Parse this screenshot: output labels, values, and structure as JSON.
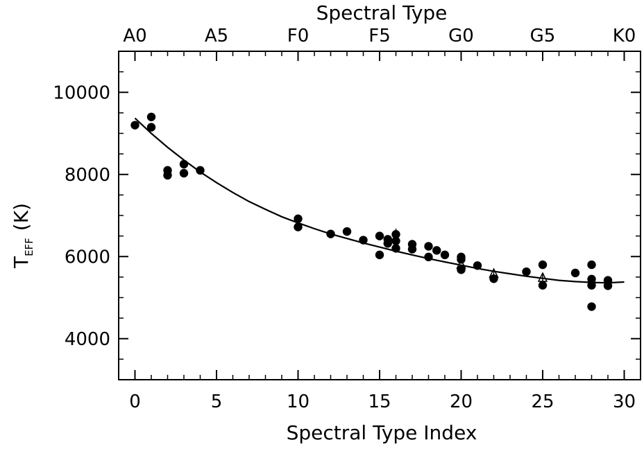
{
  "chart_data": {
    "type": "scatter",
    "title": "",
    "xlabel": "Spectral Type Index",
    "ylabel": "T",
    "ylabel_sub": "EFF",
    "ylabel_unit": "(K)",
    "top_xlabel": "Spectral Type",
    "xlim": [
      -1,
      31
    ],
    "ylim": [
      3000,
      11000
    ],
    "xticks": [
      0,
      5,
      10,
      15,
      20,
      25,
      30
    ],
    "yticks": [
      4000,
      6000,
      8000,
      10000
    ],
    "top_ticks": [
      {
        "x": 0,
        "label": "A0"
      },
      {
        "x": 5,
        "label": "A5"
      },
      {
        "x": 10,
        "label": "F0"
      },
      {
        "x": 15,
        "label": "F5"
      },
      {
        "x": 20,
        "label": "G0"
      },
      {
        "x": 25,
        "label": "G5"
      },
      {
        "x": 30,
        "label": "K0"
      }
    ],
    "grid": false,
    "series": [
      {
        "marker": "filled-circle",
        "points": [
          [
            0,
            9200
          ],
          [
            1,
            9400
          ],
          [
            1,
            9150
          ],
          [
            2,
            8100
          ],
          [
            2,
            7980
          ],
          [
            3,
            8250
          ],
          [
            3,
            8030
          ],
          [
            4,
            8100
          ],
          [
            10,
            6920
          ],
          [
            10,
            6720
          ],
          [
            12,
            6550
          ],
          [
            13,
            6610
          ],
          [
            14,
            6400
          ],
          [
            15,
            6500
          ],
          [
            15,
            6040
          ],
          [
            15.5,
            6420
          ],
          [
            15.5,
            6320
          ],
          [
            16,
            6540
          ],
          [
            16,
            6380
          ],
          [
            16,
            6200
          ],
          [
            17,
            6300
          ],
          [
            17,
            6180
          ],
          [
            18,
            6250
          ],
          [
            18,
            5990
          ],
          [
            18.5,
            6150
          ],
          [
            19,
            6040
          ],
          [
            20,
            5990
          ],
          [
            20,
            5930
          ],
          [
            20,
            5680
          ],
          [
            21,
            5780
          ],
          [
            22,
            5460
          ],
          [
            24,
            5630
          ],
          [
            25,
            5800
          ],
          [
            25,
            5300
          ],
          [
            27,
            5600
          ],
          [
            28,
            5800
          ],
          [
            28,
            5450
          ],
          [
            28,
            5300
          ],
          [
            28,
            4780
          ],
          [
            29,
            5420
          ],
          [
            29,
            5290
          ]
        ]
      },
      {
        "marker": "open-triangle",
        "points": [
          [
            20,
            5800
          ],
          [
            22,
            5580
          ],
          [
            25,
            5480
          ]
        ]
      },
      {
        "marker": "line",
        "points": [
          [
            0,
            9370
          ],
          [
            1,
            9000
          ],
          [
            2,
            8660
          ],
          [
            3,
            8350
          ],
          [
            4,
            8060
          ],
          [
            5,
            7800
          ],
          [
            6,
            7560
          ],
          [
            7,
            7340
          ],
          [
            8,
            7150
          ],
          [
            9,
            6970
          ],
          [
            10,
            6820
          ],
          [
            11,
            6680
          ],
          [
            12,
            6550
          ],
          [
            13,
            6440
          ],
          [
            14,
            6330
          ],
          [
            15,
            6230
          ],
          [
            16,
            6130
          ],
          [
            17,
            6040
          ],
          [
            18,
            5950
          ],
          [
            19,
            5870
          ],
          [
            20,
            5790
          ],
          [
            21,
            5710
          ],
          [
            22,
            5640
          ],
          [
            23,
            5580
          ],
          [
            24,
            5520
          ],
          [
            25,
            5470
          ],
          [
            26,
            5420
          ],
          [
            27,
            5390
          ],
          [
            28,
            5370
          ],
          [
            29,
            5360
          ],
          [
            30,
            5380
          ]
        ]
      }
    ],
    "error_bars": [
      {
        "x": 16,
        "y": 6540,
        "lo": 6420,
        "hi": 6680
      },
      {
        "x": 22,
        "y": 5580,
        "lo": 5440,
        "hi": 5700
      },
      {
        "x": 25,
        "y": 5480,
        "lo": 5400,
        "hi": 5580
      }
    ]
  }
}
